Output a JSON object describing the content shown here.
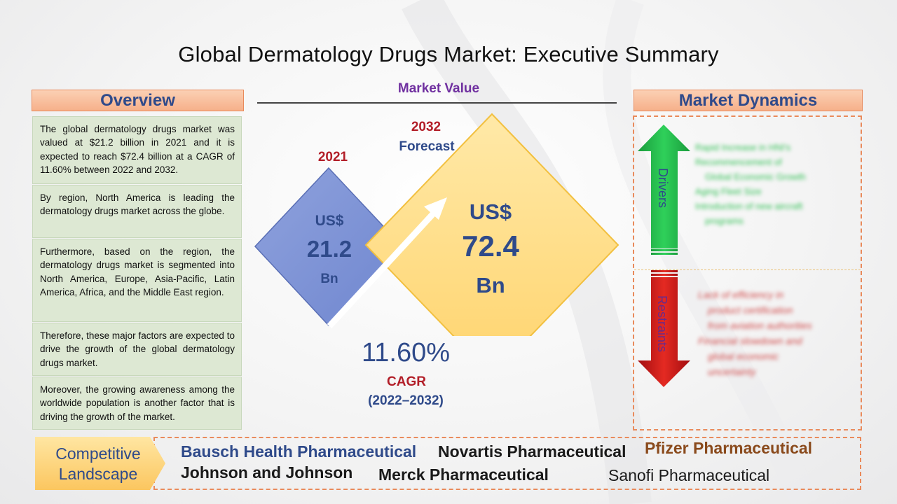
{
  "title": "Global Dermatology Drugs Market: Executive Summary",
  "overview": {
    "header": "Overview",
    "paragraphs": [
      "The global dermatology drugs market was valued at $21.2 billion in 2021 and it is expected to reach $72.4 billion at a CAGR of 11.60% between 2022 and 2032.",
      "By region, North America is leading the dermatology drugs market across the globe.",
      "Furthermore, based on the region, the dermatology drugs market is segmented into North America, Europe, Asia-Pacific, Latin America, Africa, and the Middle East region.",
      "Therefore, these major factors are expected to drive the growth of the global dermatology drugs market.",
      "Moreover, the growing awareness among the worldwide population is another factor that is driving the growth of the market."
    ]
  },
  "market_value": {
    "label": "Market Value",
    "y2021": {
      "year": "2021",
      "currency": "US$",
      "value": "21.2",
      "unit": "Bn"
    },
    "y2032": {
      "year": "2032",
      "forecast": "Forecast",
      "currency": "US$",
      "value": "72.4",
      "unit": "Bn"
    },
    "cagr": {
      "value": "11.60%",
      "label": "CAGR",
      "period": "(2022–2032)"
    }
  },
  "dynamics": {
    "header": "Market Dynamics",
    "drivers_label": "Drivers",
    "restraints_label": "Restraints",
    "drivers": [
      "Rapid Increase in HNI's",
      "Recommencement of",
      "Global Economic Growth",
      "Aging Fleet Size",
      "Introduction of new aircraft",
      "programs"
    ],
    "restraints": [
      "Lack of efficiency in",
      "product certification",
      "from aviation authorities",
      "Financial slowdown and",
      "global economic",
      "uncertainty"
    ]
  },
  "competitive": {
    "label_line1": "Competitive",
    "label_line2": "Landscape",
    "companies": [
      {
        "name": "Bausch Health Pharmaceutical",
        "color": "#2f4a8a"
      },
      {
        "name": "Novartis Pharmaceutical",
        "color": "#1a1a1a"
      },
      {
        "name": "Pfizer Pharmaceutical",
        "color": "#8a4a1c"
      },
      {
        "name": "Johnson and Johnson",
        "color": "#1a1a1a"
      },
      {
        "name": "Merck Pharmaceutical",
        "color": "#1a1a1a"
      },
      {
        "name": "Sanofi Pharmaceutical",
        "color": "#1a1a1a"
      }
    ]
  }
}
